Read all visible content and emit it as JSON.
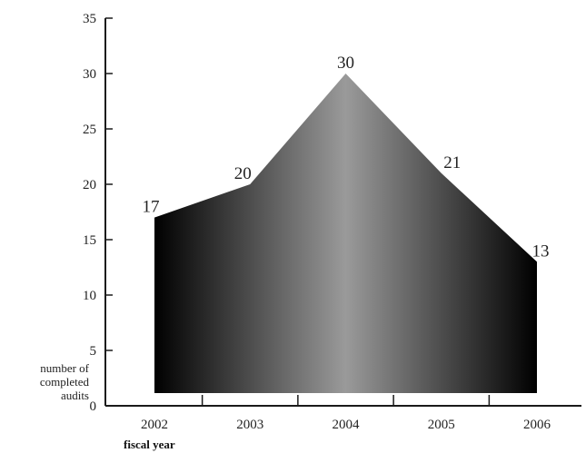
{
  "chart_data": {
    "type": "area",
    "categories": [
      "2002",
      "2003",
      "2004",
      "2005",
      "2006"
    ],
    "values": [
      17,
      20,
      30,
      21,
      13
    ],
    "data_labels": [
      "17",
      "20",
      "30",
      "21",
      "13"
    ],
    "series": [
      {
        "values": [
          17,
          20,
          30,
          21,
          13
        ]
      }
    ],
    "xlabel": "fiscal year",
    "ylabel_lines": [
      "number of",
      "completed",
      "audits"
    ],
    "ylim": [
      0,
      35
    ],
    "yticks": [
      "0",
      "5",
      "10",
      "15",
      "20",
      "25",
      "30",
      "35"
    ],
    "grid": false,
    "colors": {
      "dark": "#000000",
      "light": "#9a9a9a",
      "axis": "#1a1a1a"
    }
  }
}
